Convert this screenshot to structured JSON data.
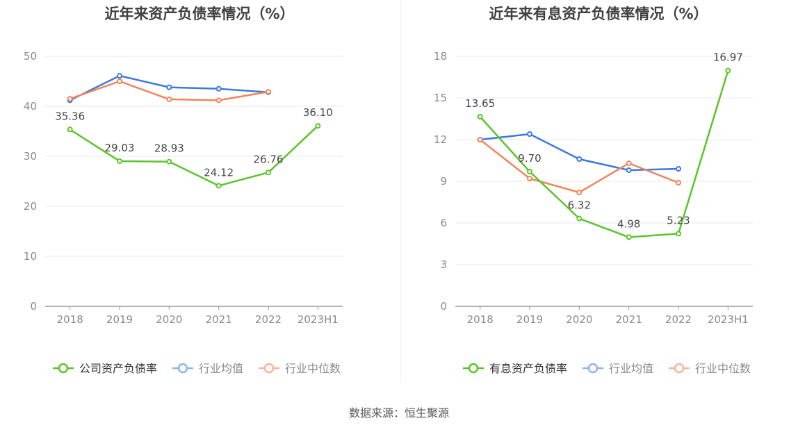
{
  "source_text": "数据来源：恒生聚源",
  "colors": {
    "company": "#5ac52a",
    "industry_avg": "#3b78e0",
    "industry_median": "#f0865a",
    "grid": "#e6e9f2",
    "axis": "#999999"
  },
  "chart_data": [
    {
      "type": "line",
      "title": "近年来资产负债率情况（%）",
      "categories": [
        "2018",
        "2019",
        "2020",
        "2021",
        "2022",
        "2023H1"
      ],
      "ylim": [
        0,
        50
      ],
      "yticks": [
        0,
        10,
        20,
        30,
        40,
        50
      ],
      "grid": true,
      "legend_position": "bottom",
      "series": [
        {
          "name": "公司资产负债率",
          "color": "#5ac52a",
          "values": [
            35.36,
            29.03,
            28.93,
            24.12,
            26.76,
            36.1
          ],
          "labels": [
            "35.36",
            "29.03",
            "28.93",
            "24.12",
            "26.76",
            "36.10"
          ]
        },
        {
          "name": "行业均值",
          "color": "#3b78e0",
          "values": [
            41.2,
            46.1,
            43.8,
            43.5,
            42.8,
            null
          ]
        },
        {
          "name": "行业中位数",
          "color": "#f0865a",
          "values": [
            41.5,
            45.0,
            41.4,
            41.2,
            42.9,
            null
          ]
        }
      ]
    },
    {
      "type": "line",
      "title": "近年来有息资产负债率情况（%）",
      "categories": [
        "2018",
        "2019",
        "2020",
        "2021",
        "2022",
        "2023H1"
      ],
      "ylim": [
        0,
        18
      ],
      "yticks": [
        0,
        3,
        6,
        9,
        12,
        15,
        18
      ],
      "grid": true,
      "legend_position": "bottom",
      "series": [
        {
          "name": "有息资产负债率",
          "color": "#5ac52a",
          "values": [
            13.65,
            9.7,
            6.32,
            4.98,
            5.23,
            16.97
          ],
          "labels": [
            "13.65",
            "9.70",
            "6.32",
            "4.98",
            "5.23",
            "16.97"
          ]
        },
        {
          "name": "行业均值",
          "color": "#3b78e0",
          "values": [
            12.0,
            12.4,
            10.6,
            9.8,
            9.9,
            null
          ]
        },
        {
          "name": "行业中位数",
          "color": "#f0865a",
          "values": [
            12.0,
            9.2,
            8.2,
            10.3,
            8.9,
            null
          ]
        }
      ]
    }
  ]
}
